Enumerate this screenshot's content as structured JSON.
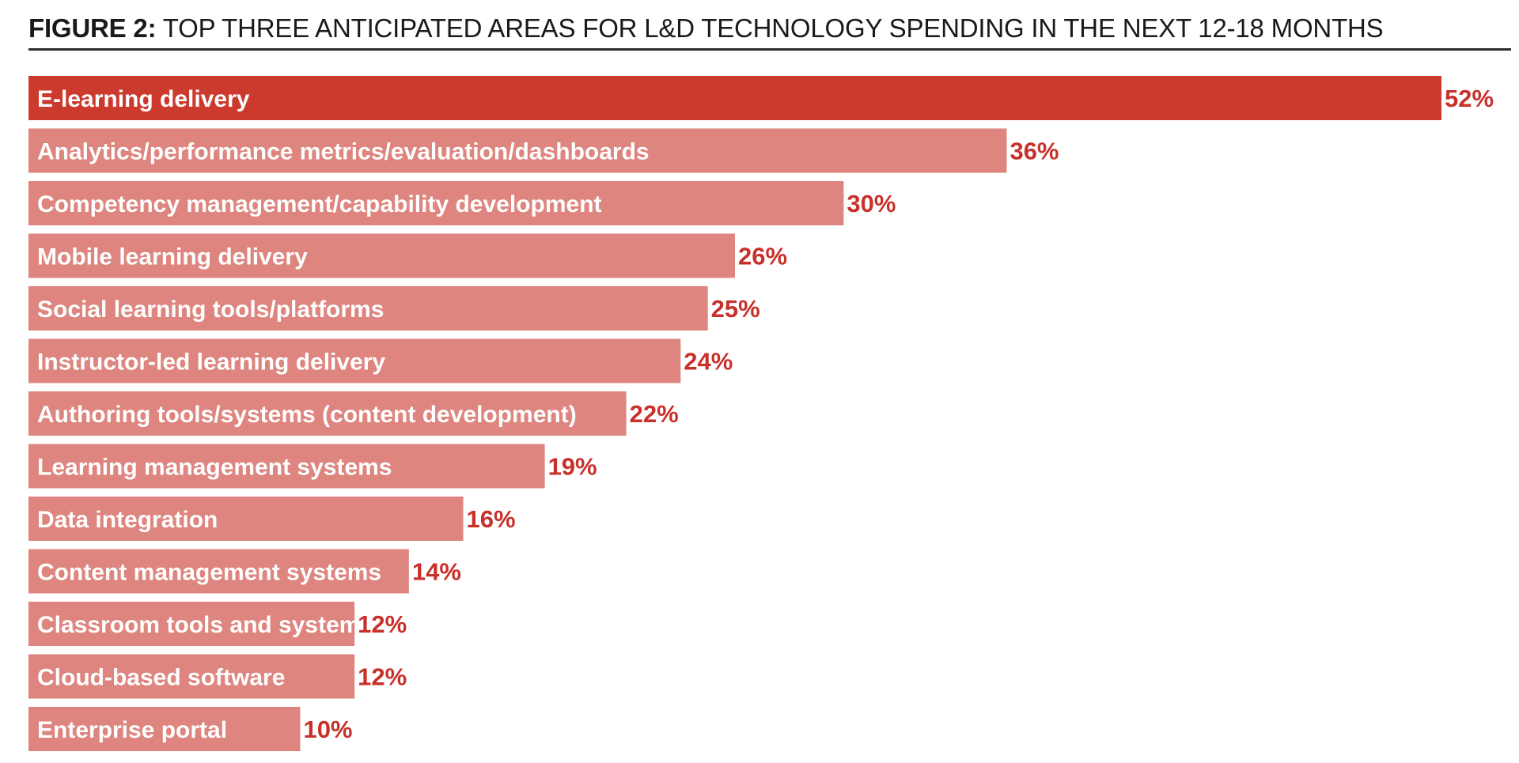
{
  "title": {
    "prefix": "FIGURE 2:",
    "main": " TOP THREE ANTICIPATED AREAS FOR L&D TECHNOLOGY SPENDING IN THE NEXT 12-18 MONTHS"
  },
  "colors": {
    "highlight_bar": "#cc3a2e",
    "bar": "#dd857e",
    "value_text": "#c8302a",
    "title_rule": "#2b2b2b"
  },
  "chart_data": {
    "type": "bar",
    "orientation": "horizontal",
    "title": "FIGURE 2: TOP THREE ANTICIPATED AREAS FOR L&D TECHNOLOGY SPENDING IN THE NEXT 12-18 MONTHS",
    "categories": [
      "E-learning delivery",
      "Analytics/performance metrics/evaluation/dashboards",
      "Competency management/capability development",
      "Mobile learning delivery",
      "Social learning tools/platforms",
      "Instructor-led learning delivery",
      "Authoring tools/systems (content development)",
      "Learning management systems",
      "Data integration",
      "Content management systems",
      "Classroom tools and systems",
      "Cloud-based software",
      "Enterprise portal"
    ],
    "values": [
      52,
      36,
      30,
      26,
      25,
      24,
      22,
      19,
      16,
      14,
      12,
      12,
      10
    ],
    "value_labels": [
      "52%",
      "36%",
      "30%",
      "26%",
      "25%",
      "24%",
      "22%",
      "19%",
      "16%",
      "14%",
      "12%",
      "12%",
      "10%"
    ],
    "highlighted_index": 0,
    "xlim": [
      0,
      52
    ],
    "grid": false,
    "legend": "none"
  }
}
